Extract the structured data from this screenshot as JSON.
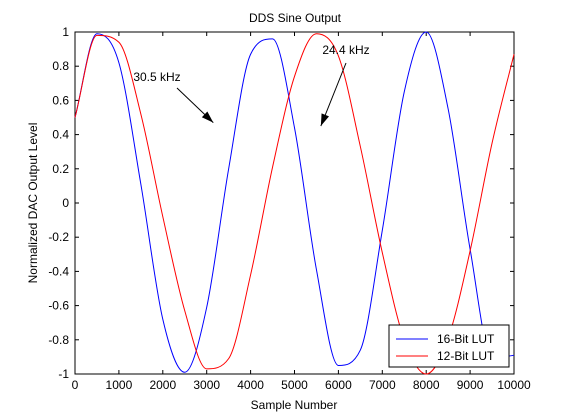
{
  "chart_data": {
    "type": "line",
    "title": "DDS Sine Output",
    "xlabel": "Sample Number",
    "ylabel": "Normalized DAC Output Level",
    "xlim": [
      0,
      10000
    ],
    "ylim": [
      -1,
      1
    ],
    "grid": false,
    "legend_placement": "bottom-right",
    "x_ticks": [
      0,
      1000,
      2000,
      3000,
      4000,
      5000,
      6000,
      7000,
      8000,
      9000,
      10000
    ],
    "x_tick_labels": [
      "0",
      "1000",
      "2000",
      "3000",
      "4000",
      "5000",
      "6000",
      "7000",
      "8000",
      "9000",
      "10000"
    ],
    "y_ticks": [
      -1,
      -0.8,
      -0.6,
      -0.4,
      -0.2,
      0,
      0.2,
      0.4,
      0.6,
      0.8,
      1
    ],
    "y_tick_labels": [
      "-1",
      "-0.8",
      "-0.6",
      "-0.4",
      "-0.2",
      "0",
      "0.2",
      "0.4",
      "0.6",
      "0.8",
      "1"
    ],
    "series": [
      {
        "name": "16-Bit LUT",
        "color": "#0000ff",
        "x": [
          0,
          500,
          1000,
          1500,
          2000,
          2500,
          3000,
          3500,
          4000,
          4500,
          5000,
          5500,
          6000,
          6500,
          7000,
          7500,
          8000,
          8500,
          9000,
          9500,
          10000
        ],
        "y": [
          0.5,
          0.99,
          0.82,
          0.11,
          -0.68,
          -0.99,
          -0.61,
          0.2,
          0.87,
          0.96,
          0.44,
          -0.39,
          -0.95,
          -0.86,
          -0.16,
          0.65,
          1.0,
          0.55,
          -0.27,
          -0.91,
          -0.89
        ]
      },
      {
        "name": "12-Bit LUT",
        "color": "#ff0000",
        "x": [
          0,
          500,
          1000,
          1500,
          2000,
          2500,
          3000,
          3500,
          4000,
          4500,
          5000,
          5500,
          6000,
          6500,
          7000,
          7500,
          8000,
          8500,
          9000,
          9500,
          10000
        ],
        "y": [
          0.5,
          0.98,
          0.94,
          0.52,
          -0.08,
          -0.63,
          -0.97,
          -0.91,
          -0.42,
          0.21,
          0.74,
          0.99,
          0.86,
          0.33,
          -0.29,
          -0.8,
          -1.0,
          -0.79,
          -0.28,
          0.35,
          0.87
        ]
      }
    ],
    "annotations": [
      {
        "text": "30.5 kHz",
        "arrow_to": [
          3150,
          0.47
        ]
      },
      {
        "text": "24.4 kHz",
        "arrow_to": [
          5600,
          0.45
        ]
      }
    ]
  }
}
